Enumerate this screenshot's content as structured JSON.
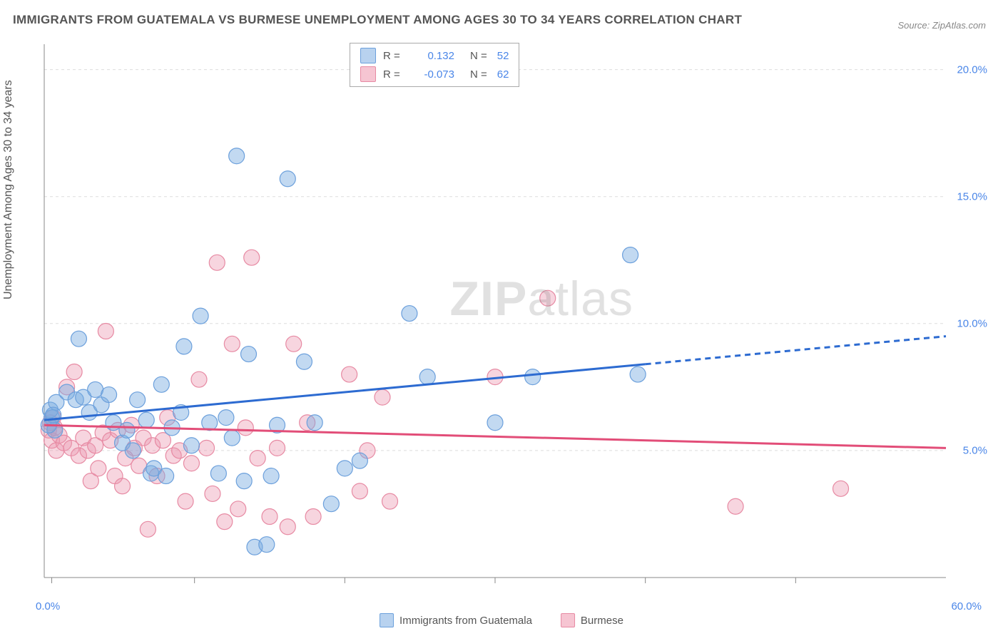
{
  "title": "IMMIGRANTS FROM GUATEMALA VS BURMESE UNEMPLOYMENT AMONG AGES 30 TO 34 YEARS CORRELATION CHART",
  "source": "Source: ZipAtlas.com",
  "ylabel": "Unemployment Among Ages 30 to 34 years",
  "watermark": {
    "bold": "ZIP",
    "light": "atlas"
  },
  "axis": {
    "x_min_label": "0.0%",
    "x_max_label": "60.0%",
    "x_min": 0,
    "x_max": 60,
    "y_min": 0,
    "y_max": 21,
    "y_ticks": [
      {
        "v": 5,
        "label": "5.0%"
      },
      {
        "v": 10,
        "label": "10.0%"
      },
      {
        "v": 15,
        "label": "15.0%"
      },
      {
        "v": 20,
        "label": "20.0%"
      }
    ],
    "x_tick_values": [
      0.5,
      10,
      20,
      30,
      40,
      50
    ],
    "grid_color": "#dddddd",
    "axis_color": "#888888"
  },
  "legend_top": {
    "rows": [
      {
        "color_fill": "#b8d2ef",
        "color_stroke": "#6ca0dc",
        "r_label": "R =",
        "r_value": "0.132",
        "n_label": "N =",
        "n_value": "52"
      },
      {
        "color_fill": "#f6c5d2",
        "color_stroke": "#e78aa3",
        "r_label": "R =",
        "r_value": "-0.073",
        "n_label": "N =",
        "n_value": "62"
      }
    ]
  },
  "legend_bottom": {
    "items": [
      {
        "label": "Immigrants from Guatemala",
        "fill": "#b8d2ef",
        "stroke": "#6ca0dc"
      },
      {
        "label": "Burmese",
        "fill": "#f6c5d2",
        "stroke": "#e78aa3"
      }
    ]
  },
  "series": {
    "blue": {
      "fill": "rgba(120,170,225,0.45)",
      "stroke": "#6ca0dc",
      "line_color": "#2d6bd1",
      "line_width": 3,
      "trend": {
        "x1": 0,
        "y1": 6.2,
        "x2": 40,
        "y2": 8.4,
        "x2_dash": 60,
        "y2_dash": 9.5
      },
      "marker_r": 11,
      "points": [
        [
          0.5,
          6.3
        ],
        [
          0.7,
          5.8
        ],
        [
          0.4,
          6.6
        ],
        [
          0.8,
          6.9
        ],
        [
          0.3,
          6.0
        ],
        [
          0.6,
          6.4
        ],
        [
          1.5,
          7.3
        ],
        [
          2.1,
          7.0
        ],
        [
          2.3,
          9.4
        ],
        [
          2.6,
          7.1
        ],
        [
          3.0,
          6.5
        ],
        [
          3.4,
          7.4
        ],
        [
          3.8,
          6.8
        ],
        [
          4.3,
          7.2
        ],
        [
          4.6,
          6.1
        ],
        [
          5.2,
          5.3
        ],
        [
          5.5,
          5.8
        ],
        [
          5.9,
          5.0
        ],
        [
          6.2,
          7.0
        ],
        [
          6.8,
          6.2
        ],
        [
          7.1,
          4.1
        ],
        [
          7.3,
          4.3
        ],
        [
          7.8,
          7.6
        ],
        [
          8.1,
          4.0
        ],
        [
          8.5,
          5.9
        ],
        [
          9.1,
          6.5
        ],
        [
          9.3,
          9.1
        ],
        [
          9.8,
          5.2
        ],
        [
          10.4,
          10.3
        ],
        [
          11.0,
          6.1
        ],
        [
          11.6,
          4.1
        ],
        [
          12.1,
          6.3
        ],
        [
          12.5,
          5.5
        ],
        [
          12.8,
          16.6
        ],
        [
          13.3,
          3.8
        ],
        [
          13.6,
          8.8
        ],
        [
          14.0,
          1.2
        ],
        [
          14.8,
          1.3
        ],
        [
          15.1,
          4.0
        ],
        [
          15.5,
          6.0
        ],
        [
          16.2,
          15.7
        ],
        [
          17.3,
          8.5
        ],
        [
          18.0,
          6.1
        ],
        [
          19.1,
          2.9
        ],
        [
          20.0,
          4.3
        ],
        [
          21.0,
          4.6
        ],
        [
          24.3,
          10.4
        ],
        [
          25.5,
          7.9
        ],
        [
          30.0,
          6.1
        ],
        [
          32.5,
          7.9
        ],
        [
          39.0,
          12.7
        ],
        [
          39.5,
          8.0
        ]
      ]
    },
    "pink": {
      "fill": "rgba(235,150,175,0.40)",
      "stroke": "#e78aa3",
      "line_color": "#e24d78",
      "line_width": 3,
      "trend": {
        "x1": 0,
        "y1": 6.0,
        "x2": 60,
        "y2": 5.1
      },
      "marker_r": 11,
      "points": [
        [
          0.3,
          5.8
        ],
        [
          0.4,
          6.1
        ],
        [
          0.5,
          5.4
        ],
        [
          0.6,
          6.3
        ],
        [
          0.7,
          5.9
        ],
        [
          0.8,
          5.0
        ],
        [
          1.0,
          5.6
        ],
        [
          1.3,
          5.3
        ],
        [
          1.5,
          7.5
        ],
        [
          1.8,
          5.1
        ],
        [
          2.0,
          8.1
        ],
        [
          2.3,
          4.8
        ],
        [
          2.6,
          5.5
        ],
        [
          2.9,
          5.0
        ],
        [
          3.1,
          3.8
        ],
        [
          3.4,
          5.2
        ],
        [
          3.6,
          4.3
        ],
        [
          3.9,
          5.7
        ],
        [
          4.1,
          9.7
        ],
        [
          4.4,
          5.4
        ],
        [
          4.7,
          4.0
        ],
        [
          4.9,
          5.8
        ],
        [
          5.2,
          3.6
        ],
        [
          5.4,
          4.7
        ],
        [
          5.8,
          6.0
        ],
        [
          6.0,
          5.1
        ],
        [
          6.3,
          4.4
        ],
        [
          6.6,
          5.5
        ],
        [
          6.9,
          1.9
        ],
        [
          7.2,
          5.2
        ],
        [
          7.5,
          4.0
        ],
        [
          7.9,
          5.4
        ],
        [
          8.2,
          6.3
        ],
        [
          8.6,
          4.8
        ],
        [
          9.0,
          5.0
        ],
        [
          9.4,
          3.0
        ],
        [
          9.8,
          4.5
        ],
        [
          10.3,
          7.8
        ],
        [
          10.8,
          5.1
        ],
        [
          11.2,
          3.3
        ],
        [
          11.5,
          12.4
        ],
        [
          12.0,
          2.2
        ],
        [
          12.5,
          9.2
        ],
        [
          12.9,
          2.7
        ],
        [
          13.4,
          5.9
        ],
        [
          13.8,
          12.6
        ],
        [
          14.2,
          4.7
        ],
        [
          15.0,
          2.4
        ],
        [
          15.5,
          5.1
        ],
        [
          16.2,
          2.0
        ],
        [
          16.6,
          9.2
        ],
        [
          17.5,
          6.1
        ],
        [
          17.9,
          2.4
        ],
        [
          20.3,
          8.0
        ],
        [
          21.0,
          3.4
        ],
        [
          21.5,
          5.0
        ],
        [
          22.5,
          7.1
        ],
        [
          23.0,
          3.0
        ],
        [
          30.0,
          7.9
        ],
        [
          33.5,
          11.0
        ],
        [
          46.0,
          2.8
        ],
        [
          53.0,
          3.5
        ]
      ]
    }
  },
  "chart": {
    "background": "#ffffff",
    "title_color": "#555555",
    "title_fontsize": 17
  }
}
